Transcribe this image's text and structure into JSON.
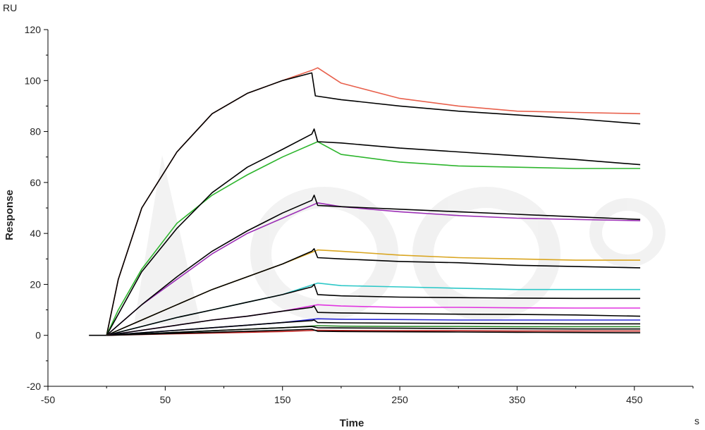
{
  "chart_data": {
    "type": "line",
    "title": "",
    "xlabel": "Time",
    "ylabel": "Response",
    "x_unit": "s",
    "y_unit": "RU",
    "xlim": [
      -50,
      500
    ],
    "ylim": [
      -20,
      120
    ],
    "x_ticks": [
      -50,
      50,
      150,
      250,
      350,
      450
    ],
    "y_ticks": [
      -20,
      0,
      20,
      40,
      60,
      80,
      100,
      120
    ],
    "x_tick_labels": [
      "-50",
      "50",
      "150",
      "250",
      "350",
      "450"
    ],
    "y_tick_labels": [
      "-20",
      "0",
      "20",
      "40",
      "60",
      "80",
      "100",
      "120"
    ],
    "grid": false,
    "legend": "none",
    "series": [
      {
        "color": "#e8604c",
        "x": [
          0,
          10,
          30,
          60,
          90,
          120,
          150,
          175,
          180,
          200,
          250,
          300,
          350,
          400,
          455
        ],
        "y": [
          0,
          22,
          50,
          72,
          87,
          95,
          100,
          104,
          105,
          99,
          93,
          90,
          88,
          87.5,
          87
        ]
      },
      {
        "color": "#000000",
        "x": [
          -15,
          0,
          10,
          30,
          60,
          90,
          120,
          150,
          175,
          178,
          200,
          250,
          300,
          350,
          400,
          455
        ],
        "y": [
          0,
          0,
          22,
          50,
          72,
          87,
          95,
          100,
          103,
          94,
          92.5,
          90,
          88,
          86.5,
          85,
          83
        ]
      },
      {
        "color": "#2db52d",
        "x": [
          0,
          10,
          30,
          60,
          90,
          120,
          150,
          180,
          200,
          250,
          300,
          350,
          400,
          455
        ],
        "y": [
          0,
          10,
          26,
          44,
          55,
          63,
          70,
          76,
          71,
          68,
          66.5,
          66,
          65.5,
          65.5
        ]
      },
      {
        "color": "#000000",
        "x": [
          0,
          30,
          60,
          90,
          120,
          150,
          175,
          177,
          180,
          200,
          250,
          300,
          350,
          400,
          455
        ],
        "y": [
          0,
          25,
          42,
          56,
          66,
          73,
          79,
          81,
          76,
          75.5,
          73.5,
          72,
          70.5,
          69,
          67
        ]
      },
      {
        "color": "#9b2fb5",
        "x": [
          0,
          30,
          60,
          90,
          120,
          150,
          180,
          200,
          250,
          300,
          350,
          400,
          455
        ],
        "y": [
          0,
          12,
          22,
          32,
          40,
          46,
          52,
          50.5,
          48.5,
          47,
          46,
          45.5,
          45
        ]
      },
      {
        "color": "#000000",
        "x": [
          0,
          30,
          60,
          90,
          120,
          150,
          175,
          177,
          180,
          200,
          250,
          300,
          350,
          400,
          455
        ],
        "y": [
          0,
          12,
          23,
          33,
          41,
          48,
          53,
          55,
          51,
          50.5,
          49.5,
          48.5,
          47.5,
          46.5,
          45.5
        ]
      },
      {
        "color": "#d9a520",
        "x": [
          0,
          30,
          60,
          90,
          120,
          150,
          180,
          200,
          250,
          300,
          350,
          400,
          455
        ],
        "y": [
          0,
          6,
          12,
          18,
          23,
          28,
          33.5,
          33,
          31.5,
          30.5,
          30,
          29.5,
          29.5
        ]
      },
      {
        "color": "#000000",
        "x": [
          0,
          30,
          60,
          90,
          120,
          150,
          175,
          177,
          180,
          200,
          250,
          300,
          350,
          400,
          455
        ],
        "y": [
          0,
          6,
          12,
          18,
          23,
          28,
          33,
          34,
          30.5,
          30,
          29,
          28.5,
          27.5,
          27,
          26.5
        ]
      },
      {
        "color": "#2ec8c8",
        "x": [
          0,
          30,
          60,
          90,
          120,
          150,
          180,
          200,
          250,
          300,
          350,
          400,
          455
        ],
        "y": [
          0,
          3.5,
          7,
          10,
          13,
          16,
          20.5,
          19.5,
          19,
          18.5,
          18,
          18,
          18
        ]
      },
      {
        "color": "#000000",
        "x": [
          0,
          30,
          60,
          90,
          120,
          150,
          175,
          177,
          180,
          200,
          250,
          300,
          350,
          400,
          455
        ],
        "y": [
          0,
          3.5,
          7,
          10,
          13,
          16,
          19,
          20,
          16,
          15.5,
          15,
          14.8,
          14.6,
          14.5,
          14.5
        ]
      },
      {
        "color": "#e034e0",
        "x": [
          0,
          30,
          60,
          90,
          120,
          150,
          180,
          200,
          250,
          300,
          350,
          400,
          455
        ],
        "y": [
          0,
          2,
          4,
          6,
          7.5,
          9.5,
          12,
          11.5,
          11,
          11,
          10.8,
          10.7,
          10.7
        ]
      },
      {
        "color": "#000000",
        "x": [
          0,
          30,
          60,
          90,
          120,
          150,
          175,
          177,
          180,
          200,
          250,
          300,
          350,
          400,
          455
        ],
        "y": [
          0,
          2,
          4,
          6,
          7.5,
          9.5,
          11,
          11.5,
          9,
          8.8,
          8.5,
          8.3,
          8.2,
          8,
          7.5
        ]
      },
      {
        "color": "#2a2ad8",
        "x": [
          0,
          30,
          60,
          90,
          120,
          150,
          180,
          200,
          250,
          300,
          350,
          400,
          455
        ],
        "y": [
          0,
          1,
          2,
          3,
          4,
          5,
          6.5,
          6.3,
          6.2,
          6,
          6,
          6,
          6
        ]
      },
      {
        "color": "#000000",
        "x": [
          0,
          30,
          60,
          90,
          120,
          150,
          175,
          177,
          180,
          200,
          250,
          300,
          350,
          400,
          455
        ],
        "y": [
          0,
          1,
          2,
          3,
          4,
          5,
          5.8,
          6,
          5,
          4.9,
          4.8,
          4.7,
          4.6,
          4.5,
          4.5
        ]
      },
      {
        "color": "#2a8a2a",
        "x": [
          0,
          30,
          60,
          90,
          120,
          150,
          180,
          200,
          250,
          300,
          350,
          400,
          455
        ],
        "y": [
          0,
          0.6,
          1.2,
          1.8,
          2.4,
          3,
          3.8,
          3.6,
          3.5,
          3.5,
          3.4,
          3.4,
          3.4
        ]
      },
      {
        "color": "#000000",
        "x": [
          0,
          30,
          60,
          90,
          120,
          150,
          175,
          180,
          200,
          250,
          300,
          350,
          400,
          455
        ],
        "y": [
          0,
          0.6,
          1.2,
          1.8,
          2.4,
          3,
          3.5,
          3,
          2.9,
          2.8,
          2.7,
          2.6,
          2.5,
          2.5
        ]
      },
      {
        "color": "#c0201d",
        "x": [
          0,
          30,
          60,
          90,
          120,
          150,
          180,
          200,
          250,
          300,
          350,
          400,
          455
        ],
        "y": [
          0,
          0.3,
          0.6,
          0.9,
          1.2,
          1.5,
          2,
          1.9,
          1.8,
          1.8,
          1.7,
          1.7,
          1.7
        ]
      },
      {
        "color": "#000000",
        "x": [
          0,
          30,
          60,
          90,
          120,
          150,
          175,
          180,
          200,
          250,
          300,
          350,
          400,
          455
        ],
        "y": [
          0,
          0.4,
          0.8,
          1.2,
          1.6,
          2,
          2.4,
          1.6,
          1.5,
          1.4,
          1.3,
          1.2,
          1.1,
          1
        ]
      }
    ]
  }
}
